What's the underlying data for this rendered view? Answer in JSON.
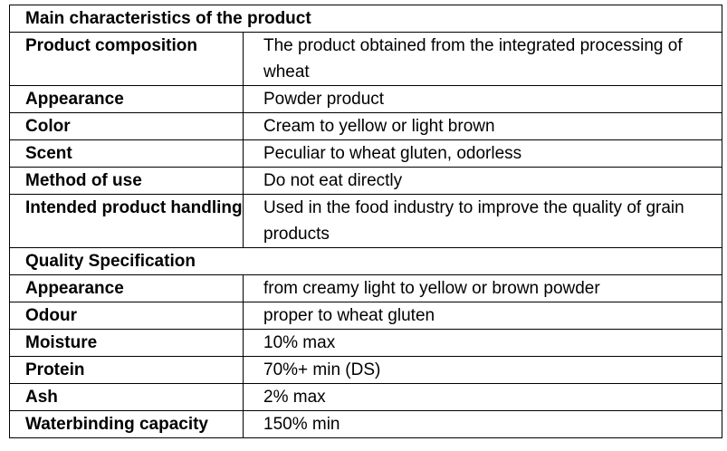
{
  "sections": [
    {
      "title": "Main characteristics of the product",
      "rows": [
        {
          "label": "Product composition",
          "value": "The product obtained from the integrated processing of wheat"
        },
        {
          "label": "Appearance",
          "value": "Powder product"
        },
        {
          "label": "Color",
          "value": "Cream to yellow or light brown"
        },
        {
          "label": "Scent",
          "value": "Peculiar to wheat gluten, odorless"
        },
        {
          "label": "Method of use",
          "value": "Do not eat directly"
        },
        {
          "label": "Intended product handling",
          "value": "Used in the food industry to improve the quality of grain products"
        }
      ]
    },
    {
      "title": "Quality Specification",
      "rows": [
        {
          "label": "Appearance",
          "value": "from creamy light to yellow or brown powder"
        },
        {
          "label": "Odour",
          "value": "proper to wheat gluten"
        },
        {
          "label": "Moisture",
          "value": "10% max"
        },
        {
          "label": "Protein",
          "value": "70%+ min (DS)"
        },
        {
          "label": "Ash",
          "value": "2% max"
        },
        {
          "label": "Waterbinding capacity",
          "value": "150% min"
        }
      ]
    }
  ]
}
